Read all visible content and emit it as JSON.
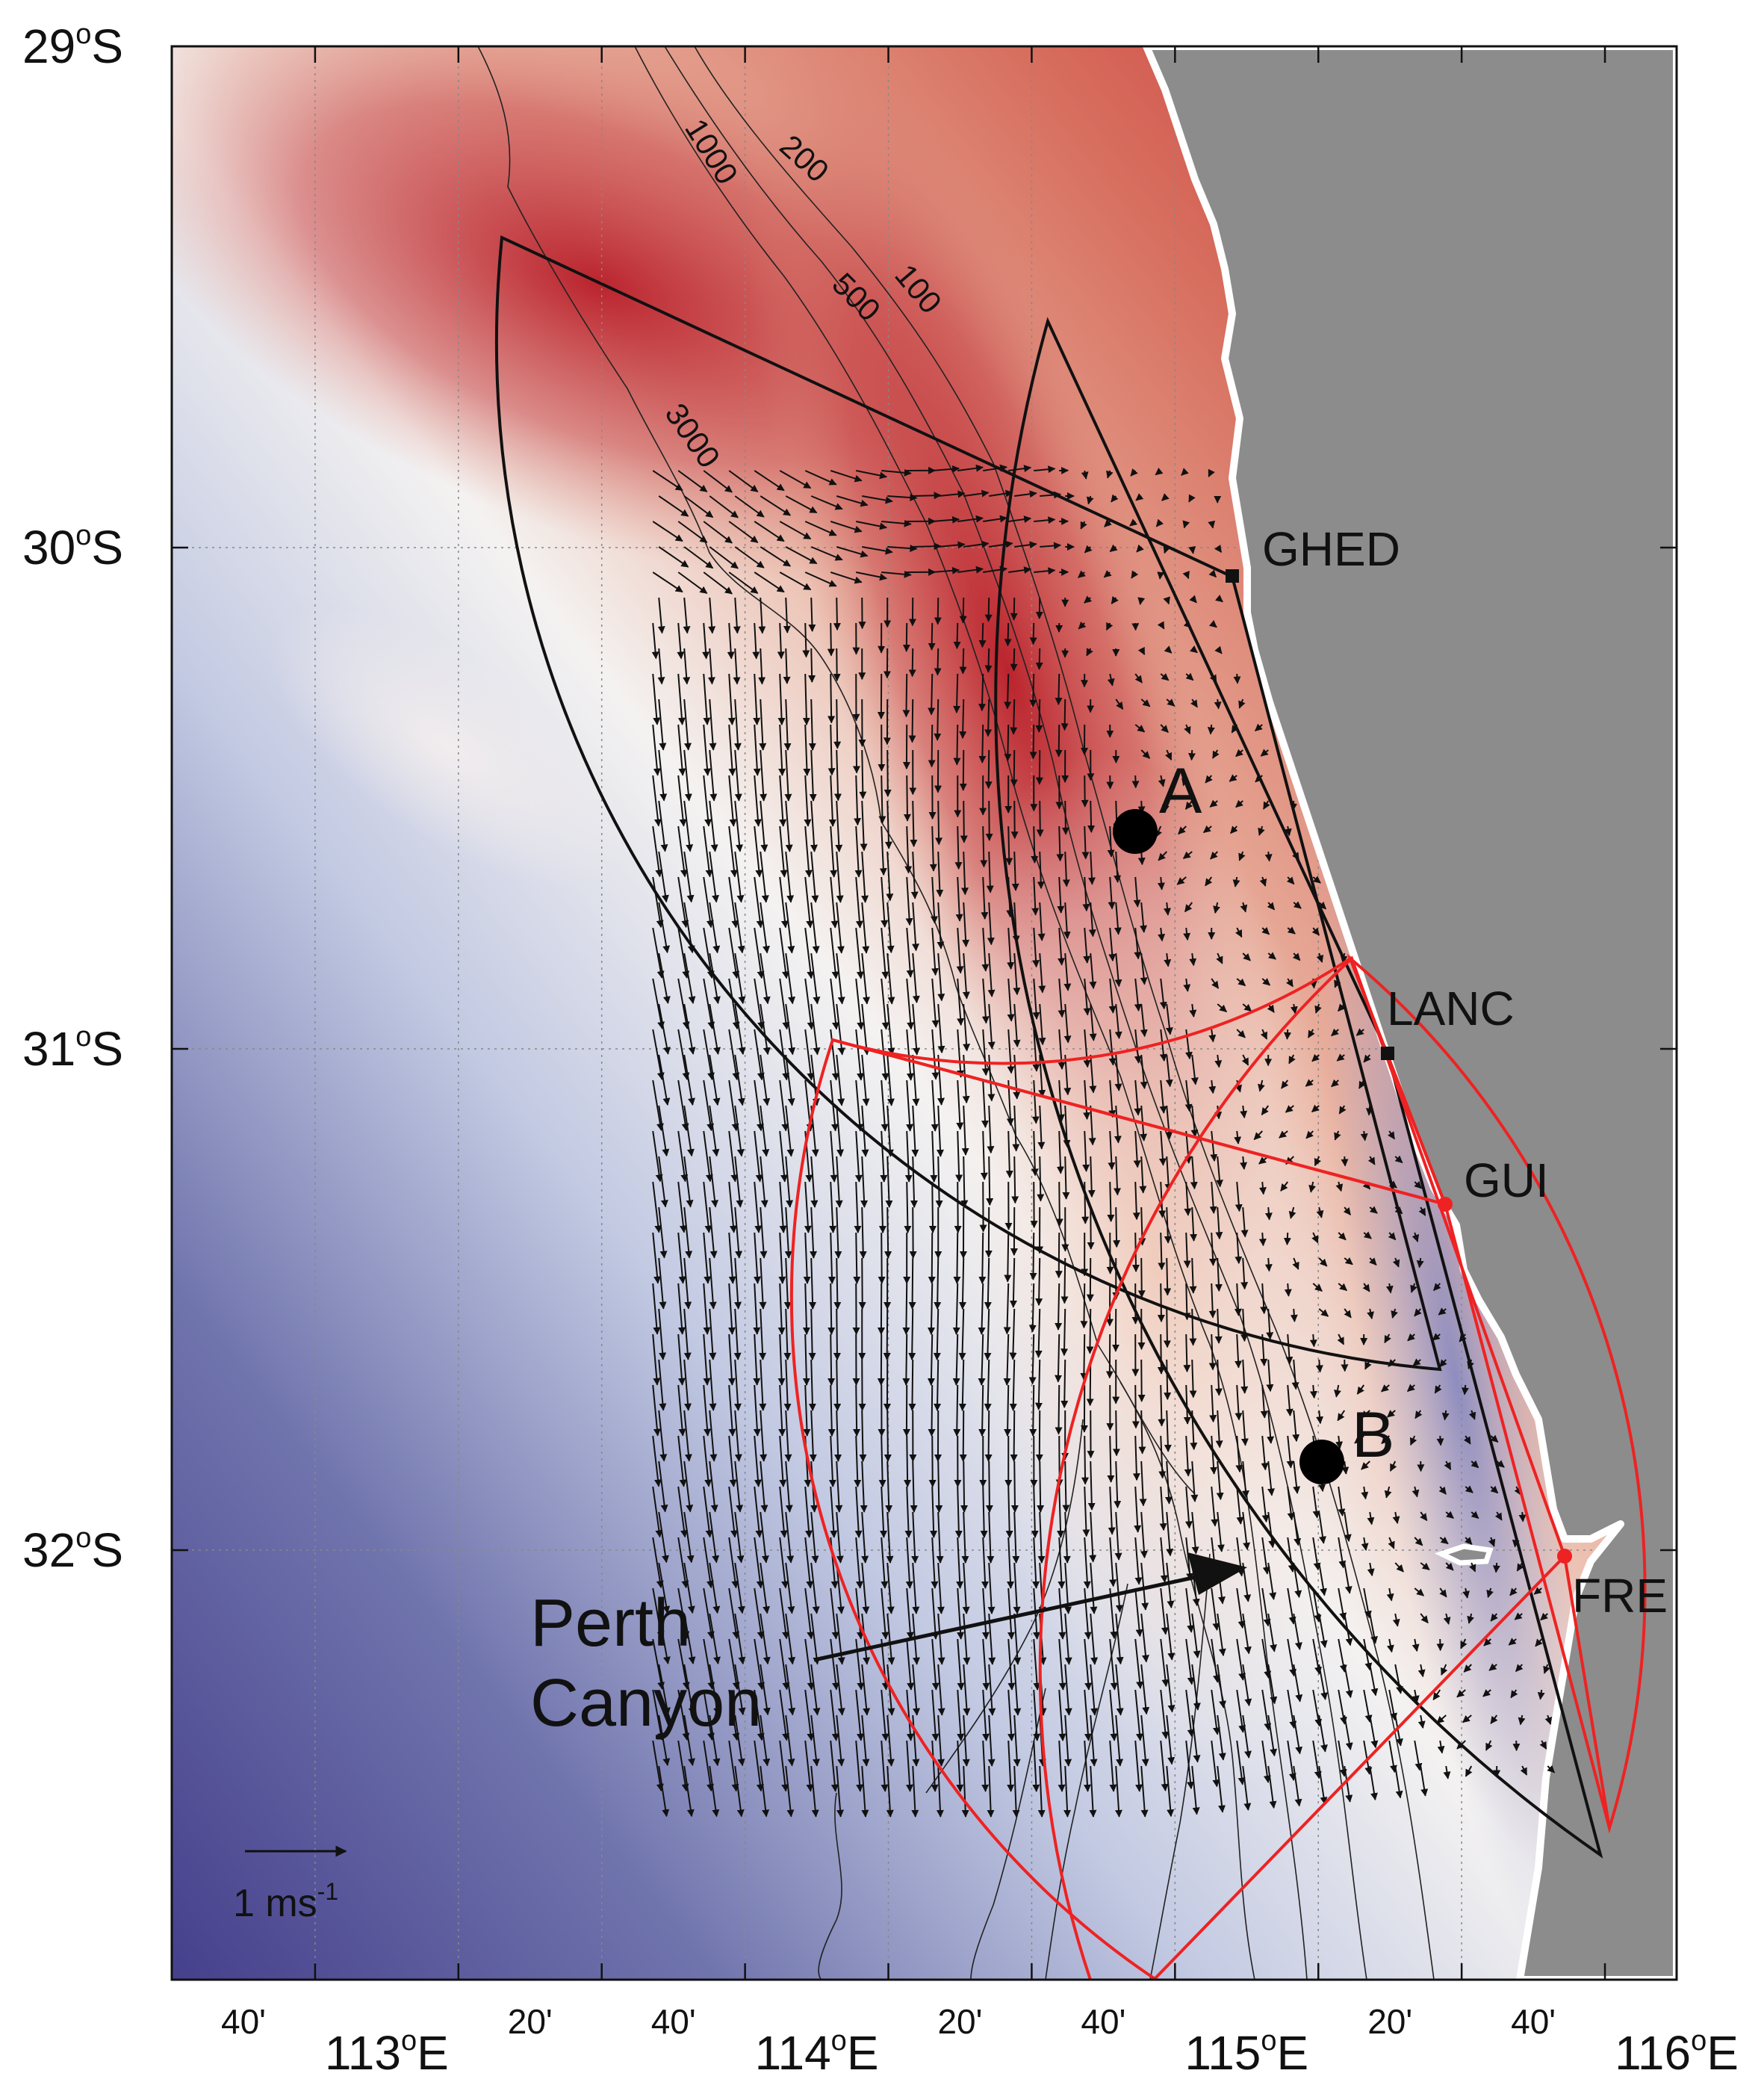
{
  "map": {
    "lat_labels": [
      {
        "deg": "29",
        "sup": "o",
        "hemi": "S",
        "lat": -29
      },
      {
        "deg": "30",
        "sup": "o",
        "hemi": "S",
        "lat": -30
      },
      {
        "deg": "31",
        "sup": "o",
        "hemi": "S",
        "lat": -31
      },
      {
        "deg": "32",
        "sup": "o",
        "hemi": "S",
        "lat": -32
      }
    ],
    "lon_major_labels": [
      {
        "deg": "113",
        "sup": "o",
        "hemi": "E",
        "lon": 113
      },
      {
        "deg": "114",
        "sup": "o",
        "hemi": "E",
        "lon": 114
      },
      {
        "deg": "115",
        "sup": "o",
        "hemi": "E",
        "lon": 115
      },
      {
        "deg": "116",
        "sup": "o",
        "hemi": "E",
        "lon": 116
      }
    ],
    "lon_minor_labels": [
      {
        "text": "40'",
        "lon": 112.6667
      },
      {
        "text": "20'",
        "lon": 113.3333
      },
      {
        "text": "40'",
        "lon": 113.6667
      },
      {
        "text": "20'",
        "lon": 114.3333
      },
      {
        "text": "40'",
        "lon": 114.6667
      },
      {
        "text": "20'",
        "lon": 115.3333
      },
      {
        "text": "40'",
        "lon": 115.6667
      }
    ],
    "contour_labels": [
      "1000",
      "200",
      "500",
      "100",
      "3000"
    ],
    "stations": [
      {
        "name": "GHED",
        "color": "#111111"
      },
      {
        "name": "LANC",
        "color": "#111111"
      },
      {
        "name": "GUI",
        "color": "#ee2222"
      },
      {
        "name": "FRE",
        "color": "#ee2222"
      }
    ],
    "points": [
      "A",
      "B"
    ],
    "annotation_line1": "Perth",
    "annotation_line2": "Canyon",
    "scale_label": "1 ms",
    "scale_sup": "-1",
    "colors": {
      "warm": "#b8202a",
      "cold": "#4a4690",
      "land": "#8c8c8c",
      "radar_black": "#111111",
      "radar_red": "#ee2222"
    }
  }
}
